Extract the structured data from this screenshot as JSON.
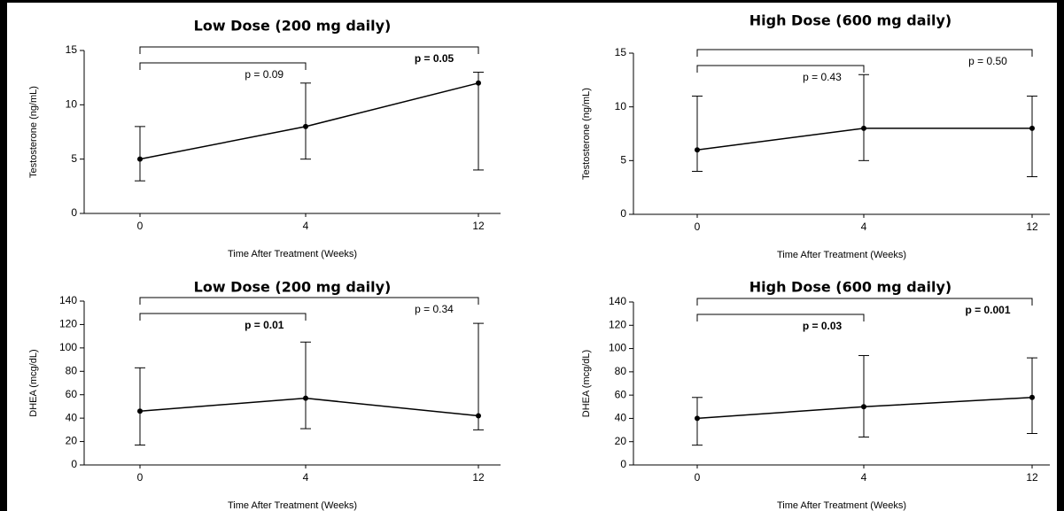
{
  "chart_data": [
    {
      "type": "line",
      "title": "Low Dose (200 mg daily)",
      "xlabel": "Time After Treatment (Weeks)",
      "ylabel": "Testosterone (ng/mL)",
      "categories": [
        "0",
        "4",
        "12"
      ],
      "values": [
        5,
        8,
        12
      ],
      "err_low": [
        3,
        5,
        4
      ],
      "err_high": [
        8,
        12,
        13
      ],
      "color": "#000000",
      "ylim": [
        0,
        15
      ],
      "yticks": [
        0,
        5,
        10,
        15
      ],
      "annotations": [
        {
          "text": "p = 0.09",
          "bold": false
        },
        {
          "text": "p = 0.05",
          "bold": true
        }
      ]
    },
    {
      "type": "line",
      "title": "High Dose (600 mg daily)",
      "xlabel": "Time After Treatment (Weeks)",
      "ylabel": "Testosterone (ng/mL)",
      "categories": [
        "0",
        "4",
        "12"
      ],
      "values": [
        6,
        8,
        8
      ],
      "err_low": [
        4,
        5,
        3.5
      ],
      "err_high": [
        11,
        13,
        11
      ],
      "color": "#000000",
      "ylim": [
        0,
        15
      ],
      "yticks": [
        0,
        5,
        10,
        15
      ],
      "annotations": [
        {
          "text": "p = 0.43",
          "bold": false
        },
        {
          "text": "p = 0.50",
          "bold": false
        }
      ]
    },
    {
      "type": "line",
      "title": "Low Dose (200 mg daily)",
      "xlabel": "Time After Treatment (Weeks)",
      "ylabel": "DHEA (mcg/dL)",
      "categories": [
        "0",
        "4",
        "12"
      ],
      "values": [
        46,
        57,
        42
      ],
      "err_low": [
        17,
        31,
        30
      ],
      "err_high": [
        83,
        105,
        121
      ],
      "color": "#000000",
      "ylim": [
        0,
        140
      ],
      "yticks": [
        0,
        20,
        40,
        60,
        80,
        100,
        120,
        140
      ],
      "annotations": [
        {
          "text": "p = 0.01",
          "bold": true
        },
        {
          "text": "p = 0.34",
          "bold": false
        }
      ]
    },
    {
      "type": "line",
      "title": "High Dose (600 mg daily)",
      "xlabel": "Time After Treatment (Weeks)",
      "ylabel": "DHEA (mcg/dL)",
      "categories": [
        "0",
        "4",
        "12"
      ],
      "values": [
        40,
        50,
        58
      ],
      "err_low": [
        17,
        24,
        27
      ],
      "err_high": [
        58,
        94,
        92
      ],
      "color": "#000000",
      "ylim": [
        0,
        140
      ],
      "yticks": [
        0,
        20,
        40,
        60,
        80,
        100,
        120,
        140
      ],
      "annotations": [
        {
          "text": "p = 0.03",
          "bold": true
        },
        {
          "text": "p = 0.001",
          "bold": true
        }
      ]
    }
  ]
}
